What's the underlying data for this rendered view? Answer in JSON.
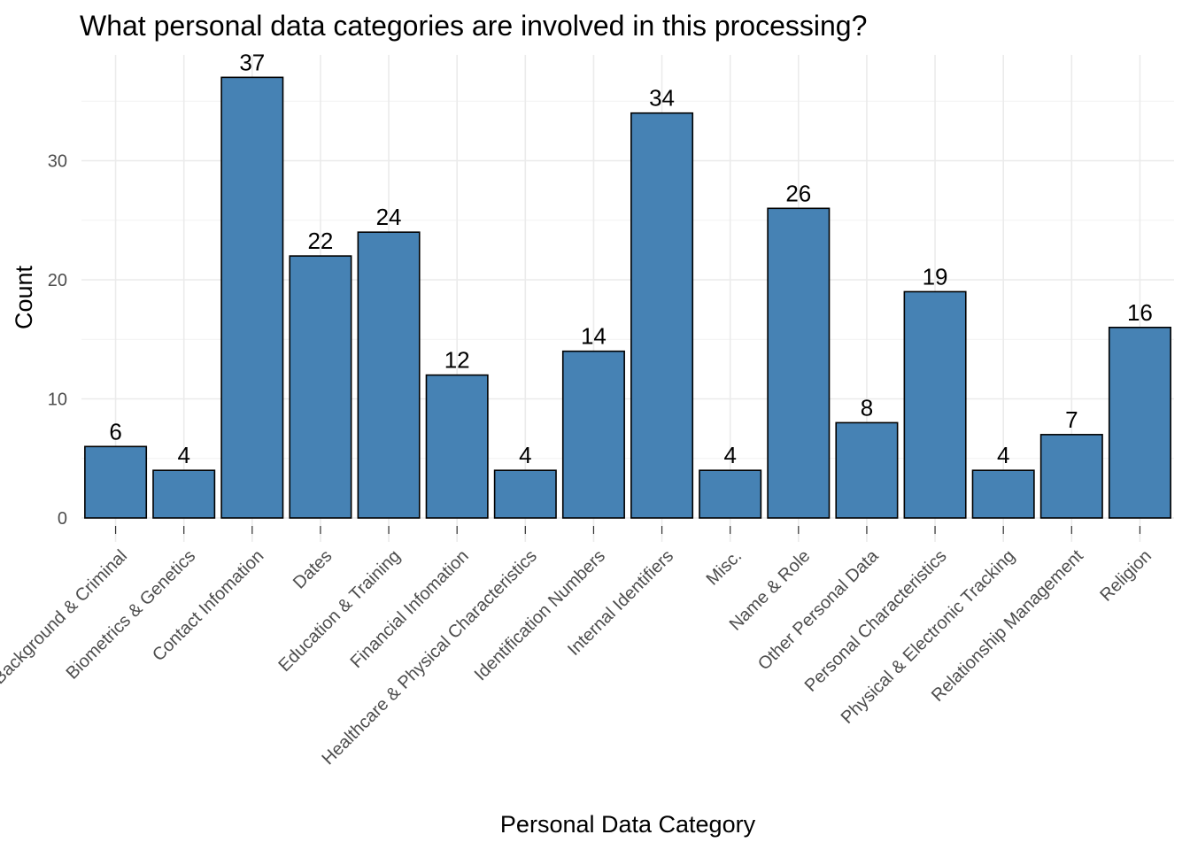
{
  "chart_data": {
    "type": "bar",
    "title": "What personal data categories are involved in this processing?",
    "xlabel": "Personal Data Category",
    "ylabel": "Count",
    "categories": [
      "Background & Criminal",
      "Biometrics & Genetics",
      "Contact Infomation",
      "Dates",
      "Education & Training",
      "Financial Infomation",
      "Healthcare & Physical Characteristics",
      "Identification Numbers",
      "Internal Identifiers",
      "Misc.",
      "Name & Role",
      "Other Personal Data",
      "Personal Characteristics",
      "Physical & Electronic Tracking",
      "Relationship Management",
      "Religion"
    ],
    "values": [
      6,
      4,
      37,
      22,
      24,
      12,
      4,
      14,
      34,
      4,
      26,
      8,
      19,
      4,
      7,
      16
    ],
    "ylim": [
      0,
      39
    ],
    "yticks": [
      0,
      10,
      20,
      30
    ],
    "bar_color": "#4682B4",
    "grid": true,
    "legend": "none"
  }
}
